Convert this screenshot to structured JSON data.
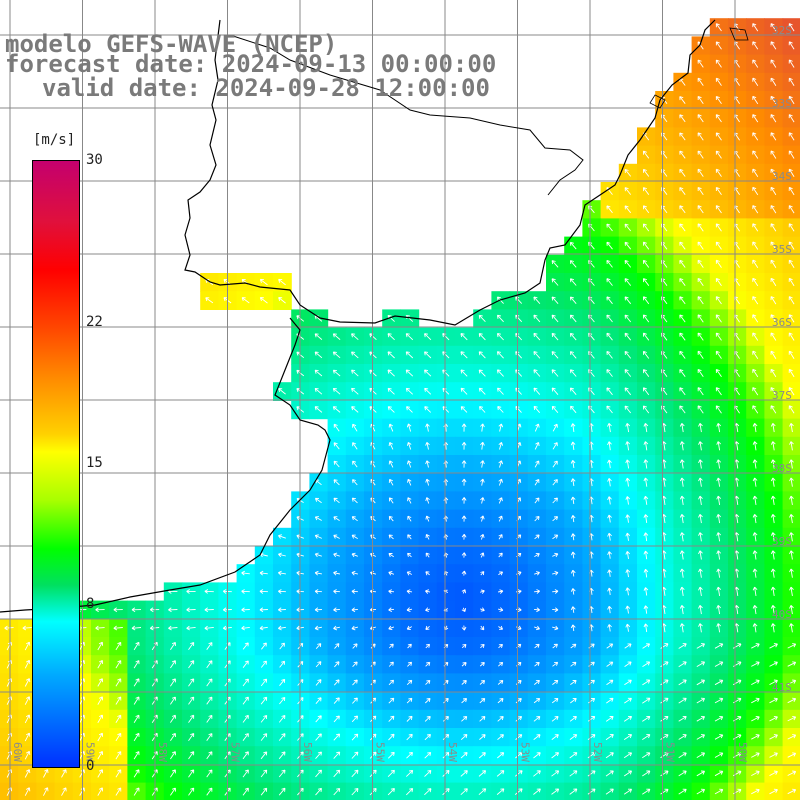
{
  "title": {
    "line1": "modelo GEFS-WAVE (NCEP)",
    "line2": "forecast date: 2024-09-13 00:00:00",
    "line3": "valid date: 2024-09-28 12:00:00"
  },
  "colorbar": {
    "unit": "[m/s]",
    "ticks": [
      {
        "label": "30",
        "value": 30
      },
      {
        "label": "22",
        "value": 22
      },
      {
        "label": "15",
        "value": 15
      },
      {
        "label": "8",
        "value": 8
      },
      {
        "label": "0",
        "value": 0
      }
    ],
    "range": [
      0,
      30
    ],
    "colors": [
      "#c4006e",
      "#ff0000",
      "#ff8c00",
      "#ffff00",
      "#00ff00",
      "#00ffff",
      "#0030ff"
    ]
  },
  "map": {
    "lat_labels": [
      "32S",
      "33S",
      "34S",
      "35S",
      "36S",
      "37S",
      "38S",
      "39S",
      "40S",
      "41S"
    ],
    "lon_labels": [
      "60W",
      "59W",
      "58W",
      "57W",
      "56W",
      "55W",
      "54W",
      "53W",
      "52W",
      "51W",
      "50W"
    ],
    "land_color": "#ffffff",
    "coast_color": "#000000",
    "grid_color": "#888888",
    "arrow_color": "#ffffff"
  }
}
